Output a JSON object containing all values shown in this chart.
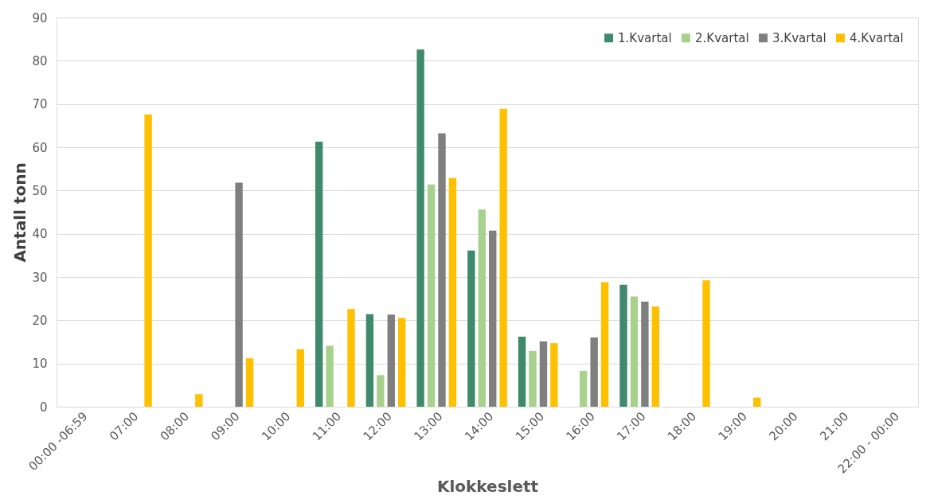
{
  "chart_data": {
    "type": "bar",
    "xlabel": "Klokkeslett",
    "ylabel": "Antall tonn",
    "categories": [
      "00:00 -06:59",
      "07:00",
      "08:00",
      "09:00",
      "10:00",
      "11:00",
      "12:00",
      "13:00",
      "14:00",
      "15:00",
      "16:00",
      "17:00",
      "18:00",
      "19:00",
      "20:00",
      "21:00",
      "22:00 - 00:00"
    ],
    "series": [
      {
        "name": "1.Kvartal",
        "color": "#3f8a6c",
        "values": [
          0,
          0,
          0,
          0,
          0,
          61.3,
          21.4,
          82.6,
          36.1,
          16.2,
          0,
          28.2,
          0,
          0,
          0,
          0,
          0
        ]
      },
      {
        "name": "2.Kvartal",
        "color": "#a9d18e",
        "values": [
          0,
          0,
          0,
          0,
          0,
          14.1,
          7.3,
          51.4,
          45.6,
          12.9,
          8.3,
          25.5,
          0,
          0,
          0,
          0,
          0
        ]
      },
      {
        "name": "3.Kvartal",
        "color": "#7f7f7f",
        "values": [
          0,
          0,
          0,
          51.8,
          0,
          0,
          21.3,
          63.2,
          40.7,
          15.1,
          16.0,
          24.3,
          0,
          0,
          0,
          0,
          0
        ]
      },
      {
        "name": "4.Kvartal",
        "color": "#ffc000",
        "values": [
          0,
          67.6,
          2.9,
          11.2,
          13.3,
          22.6,
          20.5,
          52.9,
          68.9,
          14.7,
          28.8,
          23.2,
          29.2,
          2.1,
          0,
          0,
          0
        ]
      }
    ],
    "ylim": [
      0,
      90
    ],
    "yticks": [
      0,
      10,
      20,
      30,
      40,
      50,
      60,
      70,
      80,
      90
    ],
    "grid": "y",
    "legend": "top right"
  }
}
